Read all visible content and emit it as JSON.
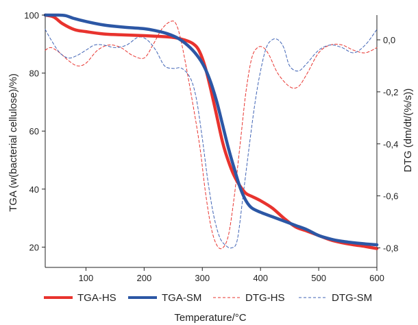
{
  "chart_data": {
    "type": "line",
    "title": "",
    "xlabel": "Temperature/°C",
    "ylabel_left": "TGA (w(bacterial cellulose)/%)",
    "ylabel_right": "DTG (dm/dt/(%/s))",
    "xlim": [
      30,
      600
    ],
    "ylim_left": [
      13,
      100
    ],
    "ylim_right": [
      -0.875,
      0.095
    ],
    "x_ticks": [
      100,
      200,
      300,
      400,
      500,
      600
    ],
    "y_left_ticks": [
      20,
      40,
      60,
      80,
      100
    ],
    "y_right_ticks": [
      "0,0",
      "-0,2",
      "-0,4",
      "-0,6",
      "-0,8"
    ],
    "y_right_tick_values": [
      0.0,
      -0.2,
      -0.4,
      -0.6,
      -0.8
    ],
    "grid": false,
    "legend_position": "bottom",
    "series": [
      {
        "name": "TGA-HS",
        "axis": "left",
        "color": "#e8332e",
        "style": "solid",
        "weight": "thick",
        "x": [
          30,
          45,
          60,
          80,
          100,
          130,
          160,
          200,
          230,
          250,
          270,
          285,
          295,
          305,
          315,
          325,
          335,
          345,
          355,
          365,
          375,
          385,
          400,
          420,
          440,
          460,
          480,
          500,
          520,
          540,
          560,
          580,
          600
        ],
        "y": [
          100,
          99.3,
          97,
          95,
          94.3,
          93.5,
          93.2,
          92.9,
          92.6,
          92.3,
          91.4,
          90,
          87.5,
          82,
          74,
          65,
          56,
          49.5,
          44.5,
          41,
          38.5,
          37.5,
          36,
          33.5,
          30,
          27,
          25.5,
          24,
          22.5,
          21.5,
          20.8,
          20.2,
          19.5
        ]
      },
      {
        "name": "TGA-SM",
        "axis": "left",
        "color": "#2c57a5",
        "style": "solid",
        "weight": "thick",
        "x": [
          30,
          50,
          65,
          80,
          100,
          130,
          160,
          200,
          220,
          240,
          260,
          280,
          295,
          305,
          315,
          325,
          335,
          345,
          355,
          365,
          375,
          385,
          400,
          420,
          440,
          460,
          480,
          500,
          520,
          540,
          560,
          580,
          600
        ],
        "y": [
          100,
          100,
          99.8,
          98.8,
          97.8,
          96.6,
          95.9,
          95.3,
          94.6,
          93.6,
          91.8,
          88.6,
          85,
          81.5,
          76.5,
          70,
          62,
          54,
          47,
          40.5,
          36,
          33.5,
          32,
          30.5,
          29,
          27.5,
          26,
          24,
          22.8,
          22,
          21.5,
          21.1,
          20.8
        ]
      },
      {
        "name": "DTG-HS",
        "axis": "right",
        "color": "#e8332e",
        "style": "dashed",
        "weight": "thin",
        "x": [
          30,
          40,
          55,
          70,
          85,
          100,
          120,
          140,
          160,
          180,
          200,
          215,
          230,
          245,
          255,
          265,
          280,
          295,
          305,
          315,
          325,
          335,
          345,
          355,
          365,
          375,
          385,
          395,
          405,
          415,
          430,
          450,
          465,
          480,
          500,
          520,
          540,
          560,
          580,
          600
        ],
        "y": [
          -0.04,
          -0.03,
          -0.05,
          -0.08,
          -0.1,
          -0.09,
          -0.04,
          -0.02,
          -0.03,
          -0.06,
          -0.07,
          -0.02,
          0.04,
          0.07,
          0.06,
          -0.02,
          -0.2,
          -0.4,
          -0.58,
          -0.72,
          -0.79,
          -0.8,
          -0.75,
          -0.6,
          -0.4,
          -0.2,
          -0.07,
          -0.03,
          -0.03,
          -0.06,
          -0.13,
          -0.18,
          -0.18,
          -0.13,
          -0.05,
          -0.02,
          -0.02,
          -0.04,
          -0.05,
          -0.03
        ]
      },
      {
        "name": "DTG-SM",
        "axis": "right",
        "color": "#3f63b5",
        "style": "dashed",
        "weight": "thin",
        "x": [
          30,
          40,
          55,
          70,
          85,
          100,
          115,
          130,
          150,
          170,
          190,
          205,
          220,
          235,
          250,
          265,
          280,
          290,
          300,
          310,
          320,
          330,
          340,
          350,
          360,
          370,
          380,
          390,
          400,
          410,
          420,
          430,
          440,
          450,
          465,
          480,
          500,
          520,
          540,
          560,
          580,
          600
        ],
        "y": [
          0.04,
          0.0,
          -0.05,
          -0.07,
          -0.06,
          -0.04,
          -0.02,
          -0.02,
          -0.03,
          -0.02,
          0.01,
          0.0,
          -0.04,
          -0.1,
          -0.11,
          -0.11,
          -0.15,
          -0.23,
          -0.38,
          -0.55,
          -0.68,
          -0.76,
          -0.79,
          -0.8,
          -0.77,
          -0.6,
          -0.42,
          -0.25,
          -0.12,
          -0.03,
          0.0,
          0.0,
          -0.03,
          -0.1,
          -0.12,
          -0.09,
          -0.04,
          -0.02,
          -0.03,
          -0.05,
          -0.02,
          0.04
        ]
      }
    ]
  }
}
